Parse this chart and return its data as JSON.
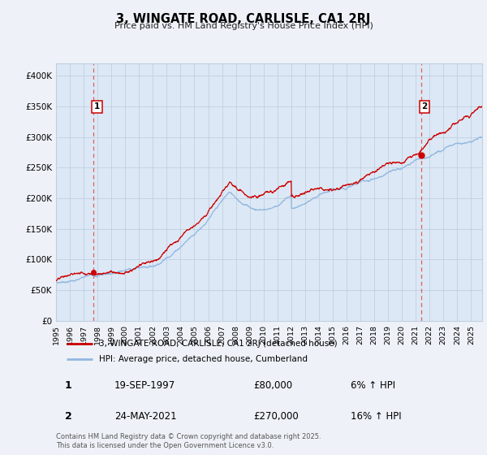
{
  "title": "3, WINGATE ROAD, CARLISLE, CA1 2RJ",
  "subtitle": "Price paid vs. HM Land Registry's House Price Index (HPI)",
  "ylim": [
    0,
    420000
  ],
  "xlim_start": 1995.0,
  "xlim_end": 2025.8,
  "yticks": [
    0,
    50000,
    100000,
    150000,
    200000,
    250000,
    300000,
    350000,
    400000
  ],
  "ytick_labels": [
    "£0",
    "£50K",
    "£100K",
    "£150K",
    "£200K",
    "£250K",
    "£300K",
    "£350K",
    "£400K"
  ],
  "xtick_years": [
    1995,
    1996,
    1997,
    1998,
    1999,
    2000,
    2001,
    2002,
    2003,
    2004,
    2005,
    2006,
    2007,
    2008,
    2009,
    2010,
    2011,
    2012,
    2013,
    2014,
    2015,
    2016,
    2017,
    2018,
    2019,
    2020,
    2021,
    2022,
    2023,
    2024,
    2025
  ],
  "hpi_color": "#90b8e0",
  "price_color": "#cc0000",
  "dashed_line_color": "#e06060",
  "bg_color": "#eef2f8",
  "plot_bg_color": "#dce8f5",
  "grid_color": "#c0cfe0",
  "legend_label_price": "3, WINGATE ROAD, CARLISLE, CA1 2RJ (detached house)",
  "legend_label_hpi": "HPI: Average price, detached house, Cumberland",
  "sale1_x": 1997.72,
  "sale1_y": 80000,
  "sale1_label": "1",
  "sale1_date": "19-SEP-1997",
  "sale1_price": "£80,000",
  "sale1_hpi": "6% ↑ HPI",
  "sale2_x": 2021.39,
  "sale2_y": 270000,
  "sale2_label": "2",
  "sale2_date": "24-MAY-2021",
  "sale2_price": "£270,000",
  "sale2_hpi": "16% ↑ HPI",
  "footer": "Contains HM Land Registry data © Crown copyright and database right 2025.\nThis data is licensed under the Open Government Licence v3.0."
}
